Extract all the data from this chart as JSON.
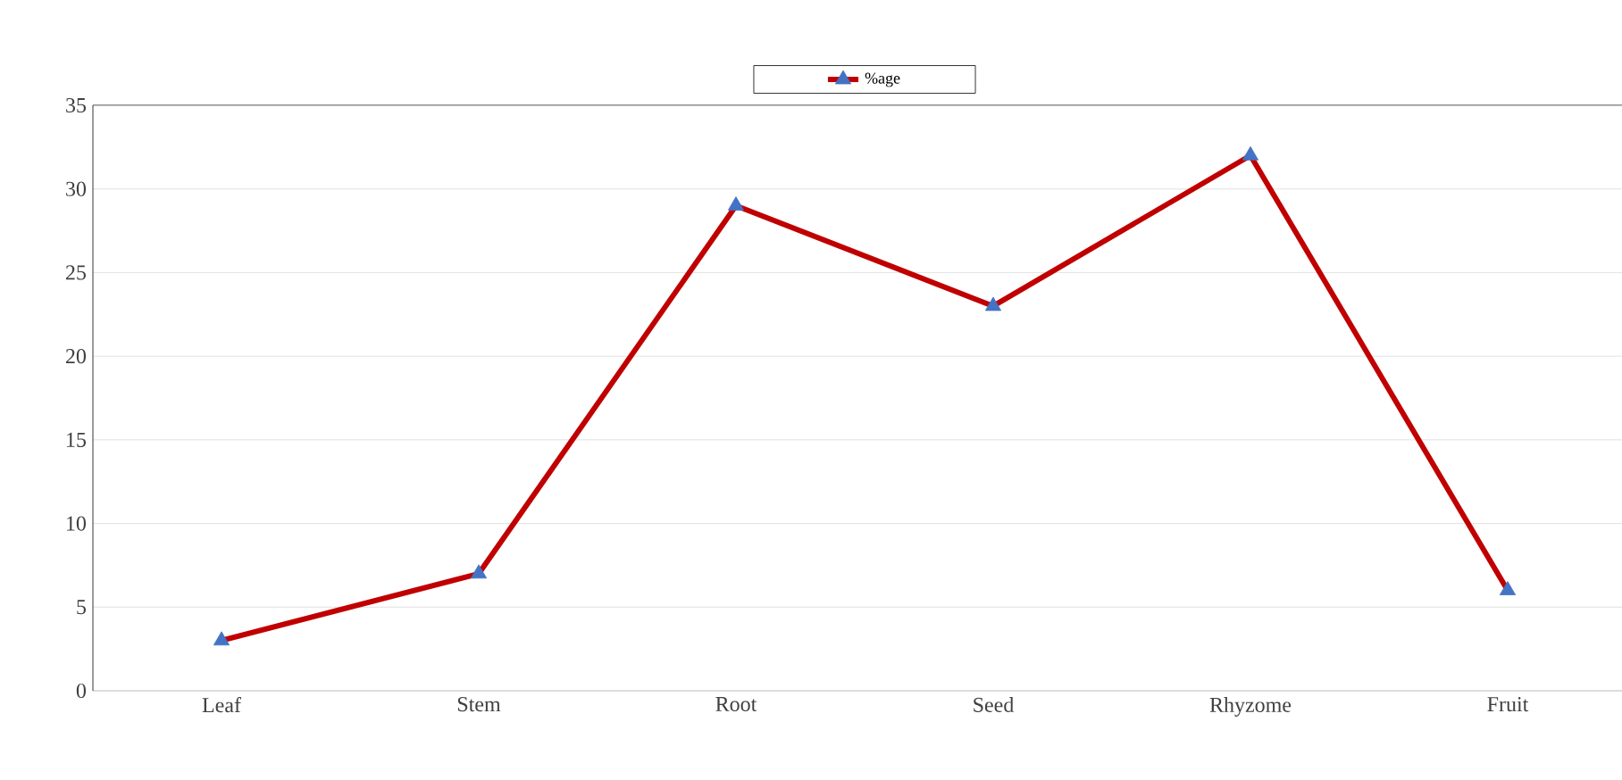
{
  "chart_data": {
    "type": "line",
    "categories": [
      "Leaf",
      "Stem",
      "Root",
      "Seed",
      "Rhyzome",
      "Fruit"
    ],
    "series": [
      {
        "name": "%age",
        "color": "#c00000",
        "values": [
          3,
          7,
          29,
          23,
          32,
          6
        ]
      }
    ],
    "marker": "triangle",
    "line_style": "solid",
    "ylim": [
      0,
      35
    ],
    "yticks": [
      0,
      5,
      10,
      15,
      20,
      25,
      30,
      35
    ],
    "grid": "y",
    "legend": "top"
  }
}
